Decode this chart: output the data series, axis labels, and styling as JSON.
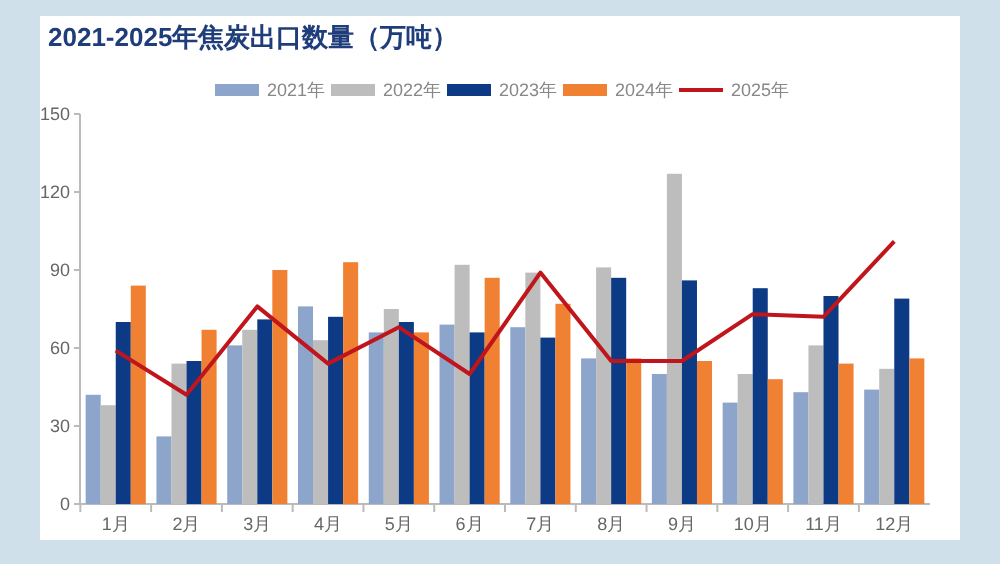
{
  "chart_data": {
    "type": "bar",
    "title": "2021-2025年焦炭出口数量（万吨）",
    "categories": [
      "1月",
      "2月",
      "3月",
      "4月",
      "5月",
      "6月",
      "7月",
      "8月",
      "9月",
      "10月",
      "11月",
      "12月"
    ],
    "series": [
      {
        "name": "2021年",
        "color": "#8ea5cb",
        "values": [
          42,
          26,
          61,
          76,
          66,
          69,
          68,
          56,
          50,
          39,
          43,
          44
        ]
      },
      {
        "name": "2022年",
        "color": "#bdbdbd",
        "values": [
          38,
          54,
          67,
          63,
          75,
          92,
          89,
          91,
          127,
          50,
          61,
          52
        ]
      },
      {
        "name": "2023年",
        "color": "#0d3a85",
        "values": [
          70,
          55,
          71,
          72,
          70,
          66,
          64,
          87,
          86,
          83,
          80,
          79
        ]
      },
      {
        "name": "2024年",
        "color": "#f08132",
        "values": [
          84,
          67,
          90,
          93,
          66,
          87,
          77,
          56,
          55,
          48,
          54,
          56
        ]
      },
      {
        "name": "2025年",
        "color": "#c0151b",
        "type": "line",
        "values": [
          59,
          42,
          76,
          54,
          68,
          50,
          89,
          55,
          55,
          73,
          72,
          101
        ]
      }
    ],
    "ylim": [
      0,
      150
    ],
    "yticks": [
      0,
      30,
      60,
      90,
      120,
      150
    ],
    "legend": "top",
    "grid": false
  }
}
